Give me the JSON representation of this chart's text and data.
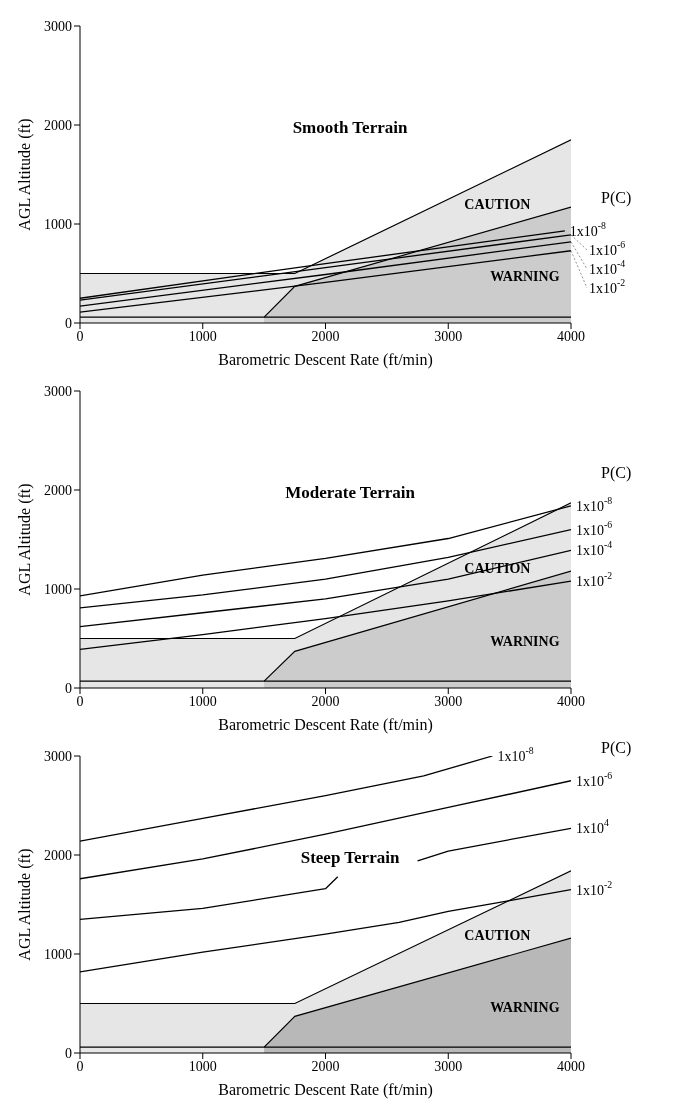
{
  "chart_data": [
    {
      "type": "line",
      "title": "Smooth Terrain",
      "xlabel": "Barometric Descent Rate (ft/min)",
      "ylabel": "AGL Altitude (ft)",
      "legend_title": "P(C)",
      "xlim": [
        0,
        4000
      ],
      "ylim": [
        0,
        3000
      ],
      "xticks": [
        0,
        1000,
        2000,
        3000,
        4000
      ],
      "yticks": [
        0,
        1000,
        2000,
        3000
      ],
      "annotations": [
        "CAUTION",
        "WARNING"
      ],
      "series": [
        {
          "type": "area",
          "color": "#e6e6e6",
          "x": [
            0,
            1750,
            4000
          ],
          "values": [
            500,
            500,
            1850
          ]
        },
        {
          "type": "area",
          "color": "#cccccc",
          "x": [
            1500,
            1750,
            4000
          ],
          "values": [
            60,
            370,
            1170
          ]
        },
        {
          "type": "line",
          "color": "#000000",
          "x": [
            0,
            4000
          ],
          "values": [
            60,
            60
          ]
        },
        {
          "type": "line",
          "name": "1x10$^{-8}$",
          "color": "#000000",
          "x": [
            0,
            2000,
            3950
          ],
          "values": [
            250,
            600,
            930
          ]
        },
        {
          "type": "line",
          "name": "1x10$^{-6}$",
          "color": "#000000",
          "x": [
            0,
            2000,
            4000
          ],
          "values": [
            230,
            560,
            890
          ]
        },
        {
          "type": "line",
          "name": "1x10$^{-4}$",
          "color": "#000000",
          "x": [
            0,
            2000,
            4000
          ],
          "values": [
            170,
            490,
            820
          ]
        },
        {
          "type": "line",
          "name": "1x10$^{-2}$",
          "color": "#000000",
          "x": [
            0,
            2000,
            4000
          ],
          "values": [
            110,
            410,
            730
          ]
        }
      ]
    },
    {
      "type": "line",
      "title": "Moderate Terrain",
      "xlabel": "Barometric Descent Rate (ft/min)",
      "ylabel": "AGL Altitude (ft)",
      "legend_title": "P(C)",
      "xlim": [
        0,
        4000
      ],
      "ylim": [
        0,
        3000
      ],
      "xticks": [
        0,
        1000,
        2000,
        3000,
        4000
      ],
      "yticks": [
        0,
        1000,
        2000,
        3000
      ],
      "annotations": [
        "CAUTION",
        "WARNING"
      ],
      "series": [
        {
          "type": "area",
          "color": "#e6e6e6",
          "x": [
            0,
            1750,
            4000
          ],
          "values": [
            500,
            500,
            1870
          ]
        },
        {
          "type": "area",
          "color": "#cccccc",
          "x": [
            1500,
            1750,
            4000
          ],
          "values": [
            70,
            370,
            1180
          ]
        },
        {
          "type": "line",
          "color": "#000000",
          "x": [
            0,
            4000
          ],
          "values": [
            70,
            70
          ]
        },
        {
          "type": "line",
          "name": "1x10$^{-8}$",
          "color": "#000000",
          "x": [
            0,
            1000,
            2000,
            3000,
            4000
          ],
          "values": [
            930,
            1140,
            1310,
            1510,
            1840
          ]
        },
        {
          "type": "line",
          "name": "1x10$^{-6}$",
          "color": "#000000",
          "x": [
            0,
            1000,
            2000,
            3000,
            4000
          ],
          "values": [
            810,
            940,
            1100,
            1320,
            1600
          ]
        },
        {
          "type": "line",
          "name": "1x10$^{-4}$",
          "color": "#000000",
          "x": [
            0,
            1000,
            2000,
            3000,
            4000
          ],
          "values": [
            620,
            760,
            900,
            1100,
            1390
          ]
        },
        {
          "type": "line",
          "name": "1x10$^{-2}$",
          "color": "#000000",
          "x": [
            0,
            1000,
            2000,
            3000,
            4000
          ],
          "values": [
            390,
            540,
            700,
            880,
            1080
          ]
        }
      ]
    },
    {
      "type": "line",
      "title": "Steep Terrain",
      "xlabel": "Barometric Descent Rate (ft/min)",
      "ylabel": "AGL Altitude (ft)",
      "legend_title": "P(C)",
      "xlim": [
        0,
        4000
      ],
      "ylim": [
        0,
        3000
      ],
      "xticks": [
        0,
        1000,
        2000,
        3000,
        4000
      ],
      "yticks": [
        0,
        1000,
        2000,
        3000
      ],
      "annotations": [
        "CAUTION",
        "WARNING"
      ],
      "series": [
        {
          "type": "area",
          "color": "#e6e6e6",
          "x": [
            0,
            1750,
            4000
          ],
          "values": [
            500,
            500,
            1840
          ]
        },
        {
          "type": "area",
          "color": "#b8b8b8",
          "x": [
            1500,
            1750,
            4000
          ],
          "values": [
            60,
            370,
            1160
          ]
        },
        {
          "type": "line",
          "color": "#000000",
          "x": [
            0,
            4000
          ],
          "values": [
            60,
            60
          ]
        },
        {
          "type": "line",
          "name": "1x10$^{-8}$",
          "color": "#000000",
          "x": [
            0,
            1000,
            2000,
            2800,
            3360
          ],
          "values": [
            2140,
            2370,
            2600,
            2800,
            3000
          ]
        },
        {
          "type": "line",
          "name": "1x10$^{-6}$",
          "color": "#000000",
          "x": [
            0,
            1000,
            2000,
            3000,
            4000
          ],
          "values": [
            1760,
            1960,
            2210,
            2480,
            2750
          ]
        },
        {
          "type": "line",
          "name": "1x10$^{4}$",
          "color": "#000000",
          "x": [
            0,
            1000,
            2000,
            2100,
            2400,
            2750,
            3000,
            4000
          ],
          "values": [
            1350,
            1460,
            1660,
            1780,
            null,
            1940,
            2040,
            2270
          ]
        },
        {
          "type": "line",
          "name": "1x10$^{-2}$",
          "color": "#000000",
          "x": [
            0,
            1000,
            2000,
            2600,
            3000,
            3500,
            4000
          ],
          "values": [
            820,
            1020,
            1200,
            1320,
            1430,
            1540,
            1650
          ]
        }
      ]
    }
  ]
}
